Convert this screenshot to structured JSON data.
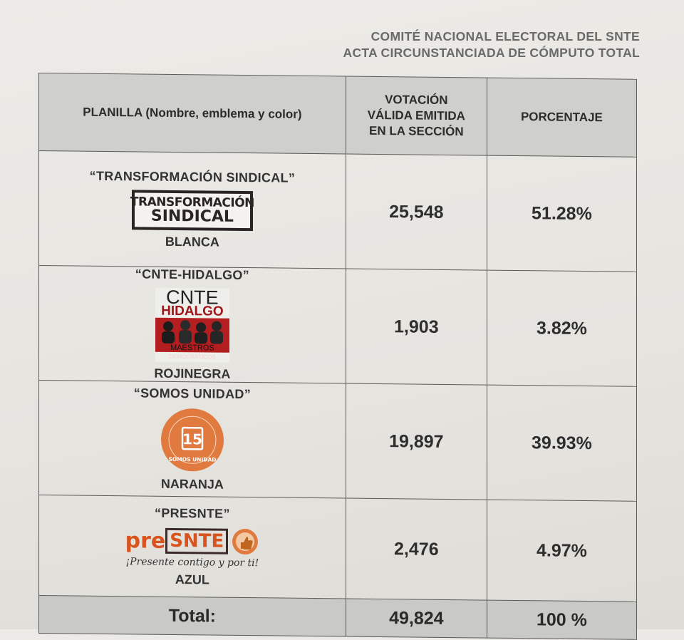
{
  "header": {
    "line1": "COMITÉ NACIONAL ELECTORAL DEL SNTE",
    "line2": "ACTA CIRCUNSTANCIADA DE CÓMPUTO TOTAL"
  },
  "table": {
    "columns": {
      "planilla": "PLANILLA (Nombre, emblema y color)",
      "votacion_l1": "VOTACIÓN",
      "votacion_l2": "VÁLIDA EMITIDA",
      "votacion_l3": "EN LA SECCIÓN",
      "porcentaje": "PORCENTAJE"
    },
    "rows": [
      {
        "name": "“TRANSFORMACIÓN SINDICAL”",
        "emblem_l1": "TRANSFORMACIÓN",
        "emblem_l2": "SINDICAL",
        "color": "BLANCA",
        "votes": "25,548",
        "percent": "51.28%"
      },
      {
        "name": "“CNTE-HIDALGO”",
        "emblem_l1": "CNTE",
        "emblem_l2": "HIDALGO",
        "emblem_l3": "MAESTROS",
        "emblem_l4": "DEMOCRÁTICOS",
        "color": "ROJINEGRA",
        "votes": "1,903",
        "percent": "3.82%"
      },
      {
        "name": "“SOMOS UNIDAD”",
        "emblem_number": "15",
        "emblem_text": "SOMOS UNIDAD",
        "color": "NARANJA",
        "votes": "19,897",
        "percent": "39.93%"
      },
      {
        "name": "“PRESNTE”",
        "emblem_pre": "pre",
        "emblem_snte": "SNTE",
        "emblem_tagline": "¡Presente contigo y por ti!",
        "color": "AZUL",
        "votes": "2,476",
        "percent": "4.97%"
      }
    ],
    "total": {
      "label": "Total:",
      "votes": "49,824",
      "percent": "100 %"
    }
  },
  "colors": {
    "header_gray": "#6a6a6a",
    "ts_dark": "#2b2424",
    "cnte_red": "#b31e20",
    "somos_orange": "#e07a3f",
    "presnte_orange": "#d9531e"
  },
  "icons": [
    "transformacion-sindical-emblem",
    "cnte-hidalgo-emblem",
    "somos-unidad-emblem",
    "presnte-emblem",
    "thumbs-up-icon"
  ]
}
